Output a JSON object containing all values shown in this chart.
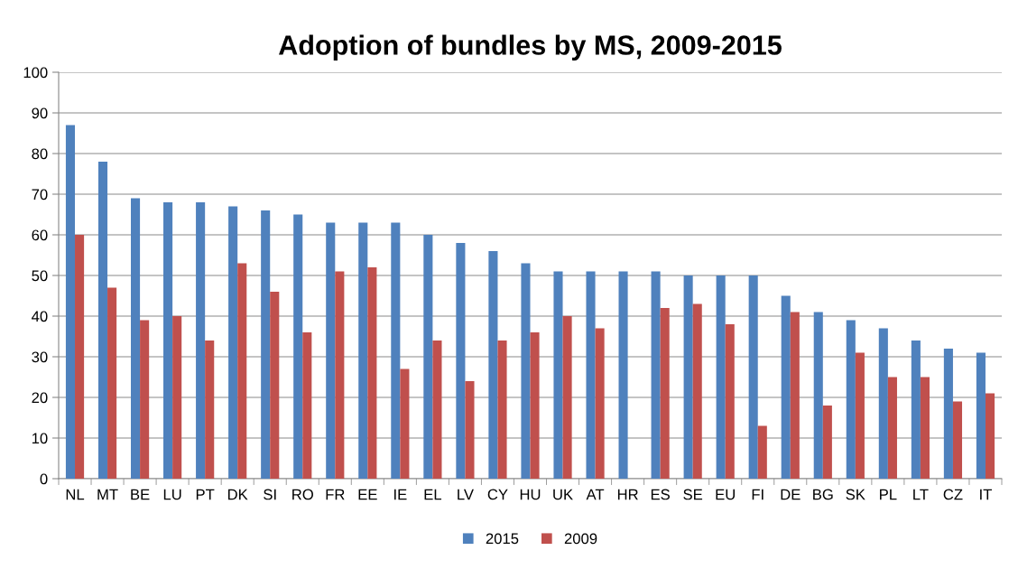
{
  "chart_data": {
    "type": "bar",
    "title": "Adoption of bundles by MS, 2009-2015",
    "categories": [
      "NL",
      "MT",
      "BE",
      "LU",
      "PT",
      "DK",
      "SI",
      "RO",
      "FR",
      "EE",
      "IE",
      "EL",
      "LV",
      "CY",
      "HU",
      "UK",
      "AT",
      "HR",
      "ES",
      "SE",
      "EU",
      "FI",
      "DE",
      "BG",
      "SK",
      "PL",
      "LT",
      "CZ",
      "IT"
    ],
    "series": [
      {
        "name": "2015",
        "color": "#4f81bd",
        "values": [
          87,
          78,
          69,
          68,
          68,
          67,
          66,
          65,
          63,
          63,
          63,
          60,
          58,
          56,
          53,
          51,
          51,
          51,
          51,
          50,
          50,
          50,
          45,
          41,
          39,
          37,
          34,
          32,
          31
        ]
      },
      {
        "name": "2009",
        "color": "#c0504d",
        "values": [
          60,
          47,
          39,
          40,
          34,
          53,
          46,
          36,
          51,
          52,
          27,
          34,
          24,
          34,
          36,
          40,
          37,
          null,
          42,
          43,
          38,
          13,
          41,
          18,
          31,
          25,
          25,
          19,
          21
        ]
      }
    ],
    "ylim": [
      0,
      100
    ],
    "yticks": [
      0,
      10,
      20,
      30,
      40,
      50,
      60,
      70,
      80,
      90,
      100
    ],
    "grid": "y",
    "legend": "bottom"
  }
}
